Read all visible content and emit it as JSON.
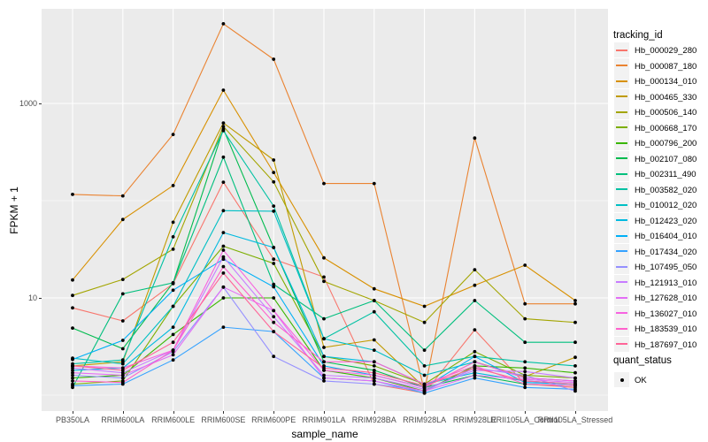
{
  "panel": {
    "background": "#EBEBEB",
    "gridline_color": "#FFFFFF",
    "tick_label_color": "#4D4D4D",
    "point_color": "#000000"
  },
  "legend": {
    "tracking_title": "tracking_id",
    "quant_status": {
      "title": "quant_status",
      "items": [
        {
          "label": "OK",
          "color": "#000000"
        }
      ]
    }
  },
  "chart_data": {
    "type": "line",
    "title": "",
    "xlabel": "sample_name",
    "ylabel": "FPKM + 1",
    "y_scale": "log10",
    "ylim_log10": [
      -0.17,
      3.97
    ],
    "grid": true,
    "legend_position": "right",
    "y_ticks": [
      {
        "value": 1000,
        "label": "1000"
      },
      {
        "value": 10,
        "label": "10"
      }
    ],
    "y_minor_ticks": [
      10000,
      100,
      1
    ],
    "categories": [
      "PB350LA",
      "RRIM600LA",
      "RRIM600LE",
      "RRIM600SE",
      "RRIM600PE",
      "RRIM901LA",
      "RRIM928BA",
      "RRIM928LA",
      "RRIM928LE",
      "RRII105LA_Control",
      "RRII105LA_Stressed"
    ],
    "series": [
      {
        "name": "Hb_000029_280",
        "color": "#F8766D",
        "values": [
          7.9,
          5.8,
          14,
          155,
          25,
          16.4,
          1.3,
          1.05,
          4.7,
          1.3,
          1.2
        ]
      },
      {
        "name": "Hb_000087_180",
        "color": "#EA8331",
        "values": [
          116,
          112,
          480,
          6600,
          2850,
          150,
          150,
          1.1,
          440,
          8.7,
          8.7
        ]
      },
      {
        "name": "Hb_000134_010",
        "color": "#D89000",
        "values": [
          15.3,
          64,
          143,
          1370,
          195,
          25.8,
          12.4,
          8.2,
          13.5,
          21.7,
          9.4
        ]
      },
      {
        "name": "Hb_000465_330",
        "color": "#C09B00",
        "values": [
          2.0,
          2.2,
          60,
          630,
          262,
          3.1,
          3.7,
          1.2,
          2.2,
          1.55,
          2.45
        ]
      },
      {
        "name": "Hb_000506_140",
        "color": "#A3A500",
        "values": [
          10.6,
          15.5,
          31.7,
          580,
          156,
          14.8,
          9.4,
          5.6,
          19.5,
          6.1,
          5.6
        ]
      },
      {
        "name": "Hb_000668_170",
        "color": "#7CAE00",
        "values": [
          1.3,
          1.4,
          8.2,
          34,
          22.6,
          2.5,
          2.0,
          1.3,
          2.8,
          1.6,
          1.5
        ]
      },
      {
        "name": "Hb_000796_200",
        "color": "#39B600",
        "values": [
          1.5,
          1.6,
          4.2,
          10,
          10,
          1.8,
          1.5,
          1.1,
          2.0,
          1.9,
          1.7
        ]
      },
      {
        "name": "Hb_002107_080",
        "color": "#00BB4E",
        "values": [
          4.9,
          3.0,
          14.3,
          545,
          33,
          2.2,
          1.8,
          1.2,
          1.6,
          1.3,
          1.25
        ]
      },
      {
        "name": "Hb_002311_490",
        "color": "#00BF7D",
        "values": [
          1.2,
          11,
          14.3,
          280,
          13.8,
          6.1,
          9.4,
          2.9,
          9.4,
          3.5,
          3.5
        ]
      },
      {
        "name": "Hb_003582_020",
        "color": "#00C1A3",
        "values": [
          2.1,
          2.3,
          42.5,
          525,
          88,
          3.8,
          7.2,
          2.0,
          2.5,
          2.2,
          2.0
        ]
      },
      {
        "name": "Hb_010012_020",
        "color": "#00BFC4",
        "values": [
          2.4,
          2.1,
          8.2,
          79,
          78,
          3.8,
          2.9,
          1.6,
          2.2,
          1.5,
          1.4
        ]
      },
      {
        "name": "Hb_012423_020",
        "color": "#00BAE0",
        "values": [
          1.8,
          1.9,
          5.0,
          47,
          33,
          2.5,
          2.2,
          1.3,
          1.7,
          1.4,
          1.3
        ]
      },
      {
        "name": "Hb_016404_010",
        "color": "#00B0F6",
        "values": [
          2.33,
          3.66,
          12,
          25,
          13,
          2.0,
          1.6,
          1.2,
          2.5,
          1.35,
          1.3
        ]
      },
      {
        "name": "Hb_017434_020",
        "color": "#35A2FF",
        "values": [
          1.25,
          1.3,
          2.3,
          5.0,
          4.5,
          1.5,
          1.4,
          1.05,
          1.5,
          1.2,
          1.15
        ]
      },
      {
        "name": "Hb_107495_050",
        "color": "#9590FF",
        "values": [
          1.6,
          1.5,
          2.8,
          12.9,
          2.5,
          1.4,
          1.3,
          1.1,
          1.9,
          1.6,
          1.1
        ]
      },
      {
        "name": "Hb_121913_010",
        "color": "#C77CFF",
        "values": [
          1.9,
          1.7,
          2.9,
          26.4,
          6.4,
          1.6,
          1.5,
          1.15,
          1.8,
          1.75,
          1.5
        ]
      },
      {
        "name": "Hb_127628_010",
        "color": "#E36EF6",
        "values": [
          1.7,
          1.6,
          2.6,
          12.9,
          7.4,
          1.5,
          1.4,
          1.1,
          1.6,
          1.45,
          1.35
        ]
      },
      {
        "name": "Hb_136027_010",
        "color": "#F763E0",
        "values": [
          2.0,
          1.9,
          2.9,
          31,
          7.4,
          1.8,
          1.6,
          1.2,
          2.2,
          1.5,
          1.4
        ]
      },
      {
        "name": "Hb_183539_010",
        "color": "#FF61CC",
        "values": [
          1.4,
          1.35,
          2.9,
          21,
          5.6,
          2.2,
          2.2,
          1.3,
          2.0,
          1.3,
          1.25
        ]
      },
      {
        "name": "Hb_187697_010",
        "color": "#FF6598",
        "values": [
          2.0,
          1.8,
          3.5,
          18,
          4.5,
          1.9,
          1.7,
          1.25,
          1.9,
          1.4,
          1.3
        ]
      }
    ]
  }
}
